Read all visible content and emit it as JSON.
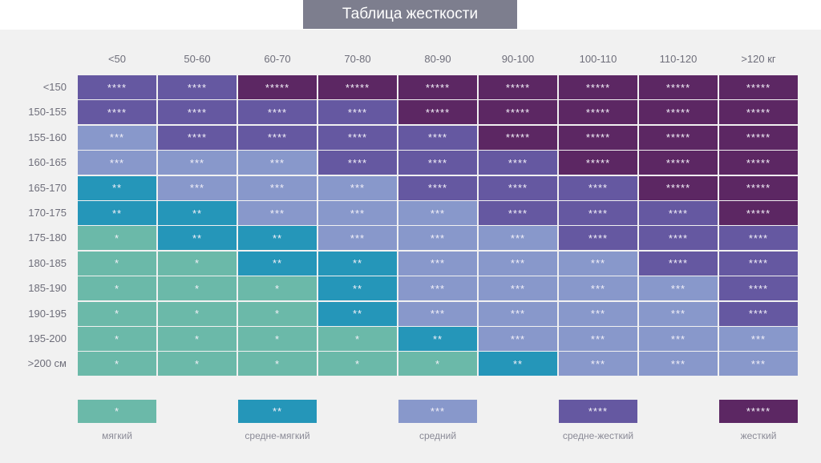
{
  "title": "Таблица жесткости",
  "chart_data": {
    "type": "heatmap",
    "title": "Таблица жесткости",
    "columns": [
      "<50",
      "50-60",
      "60-70",
      "70-80",
      "80-90",
      "90-100",
      "100-110",
      "110-120",
      ">120 кг"
    ],
    "rows": [
      "<150",
      "150-155",
      "155-160",
      "160-165",
      "165-170",
      "170-175",
      "175-180",
      "180-185",
      "185-190",
      "190-195",
      "195-200",
      ">200 см"
    ],
    "values": [
      [
        "****",
        "****",
        "*****",
        "*****",
        "*****",
        "*****",
        "*****",
        "*****",
        "*****"
      ],
      [
        "****",
        "****",
        "****",
        "****",
        "*****",
        "*****",
        "*****",
        "*****",
        "*****"
      ],
      [
        "***",
        "****",
        "****",
        "****",
        "****",
        "*****",
        "*****",
        "*****",
        "*****"
      ],
      [
        "***",
        "***",
        "***",
        "****",
        "****",
        "****",
        "*****",
        "*****",
        "*****"
      ],
      [
        "**",
        "***",
        "***",
        "***",
        "****",
        "****",
        "****",
        "*****",
        "*****"
      ],
      [
        "**",
        "**",
        "***",
        "***",
        "***",
        "****",
        "****",
        "****",
        "*****"
      ],
      [
        "*",
        "**",
        "**",
        "***",
        "***",
        "***",
        "****",
        "****",
        "****"
      ],
      [
        "*",
        "*",
        "**",
        "**",
        "***",
        "***",
        "***",
        "****",
        "****"
      ],
      [
        "*",
        "*",
        "*",
        "**",
        "***",
        "***",
        "***",
        "***",
        "****"
      ],
      [
        "*",
        "*",
        "*",
        "**",
        "***",
        "***",
        "***",
        "***",
        "****"
      ],
      [
        "*",
        "*",
        "*",
        "*",
        "**",
        "***",
        "***",
        "***",
        "***"
      ],
      [
        "*",
        "*",
        "*",
        "*",
        "*",
        "**",
        "***",
        "***",
        "***"
      ]
    ],
    "legend": [
      {
        "stars": "*",
        "label": "мягкий",
        "color": "#6bb9a9"
      },
      {
        "stars": "**",
        "label": "средне-мягкий",
        "color": "#2596b9"
      },
      {
        "stars": "***",
        "label": "средний",
        "color": "#8898cb"
      },
      {
        "stars": "****",
        "label": "средне-жесткий",
        "color": "#6558a1"
      },
      {
        "stars": "*****",
        "label": "жесткий",
        "color": "#5c2763"
      }
    ]
  }
}
